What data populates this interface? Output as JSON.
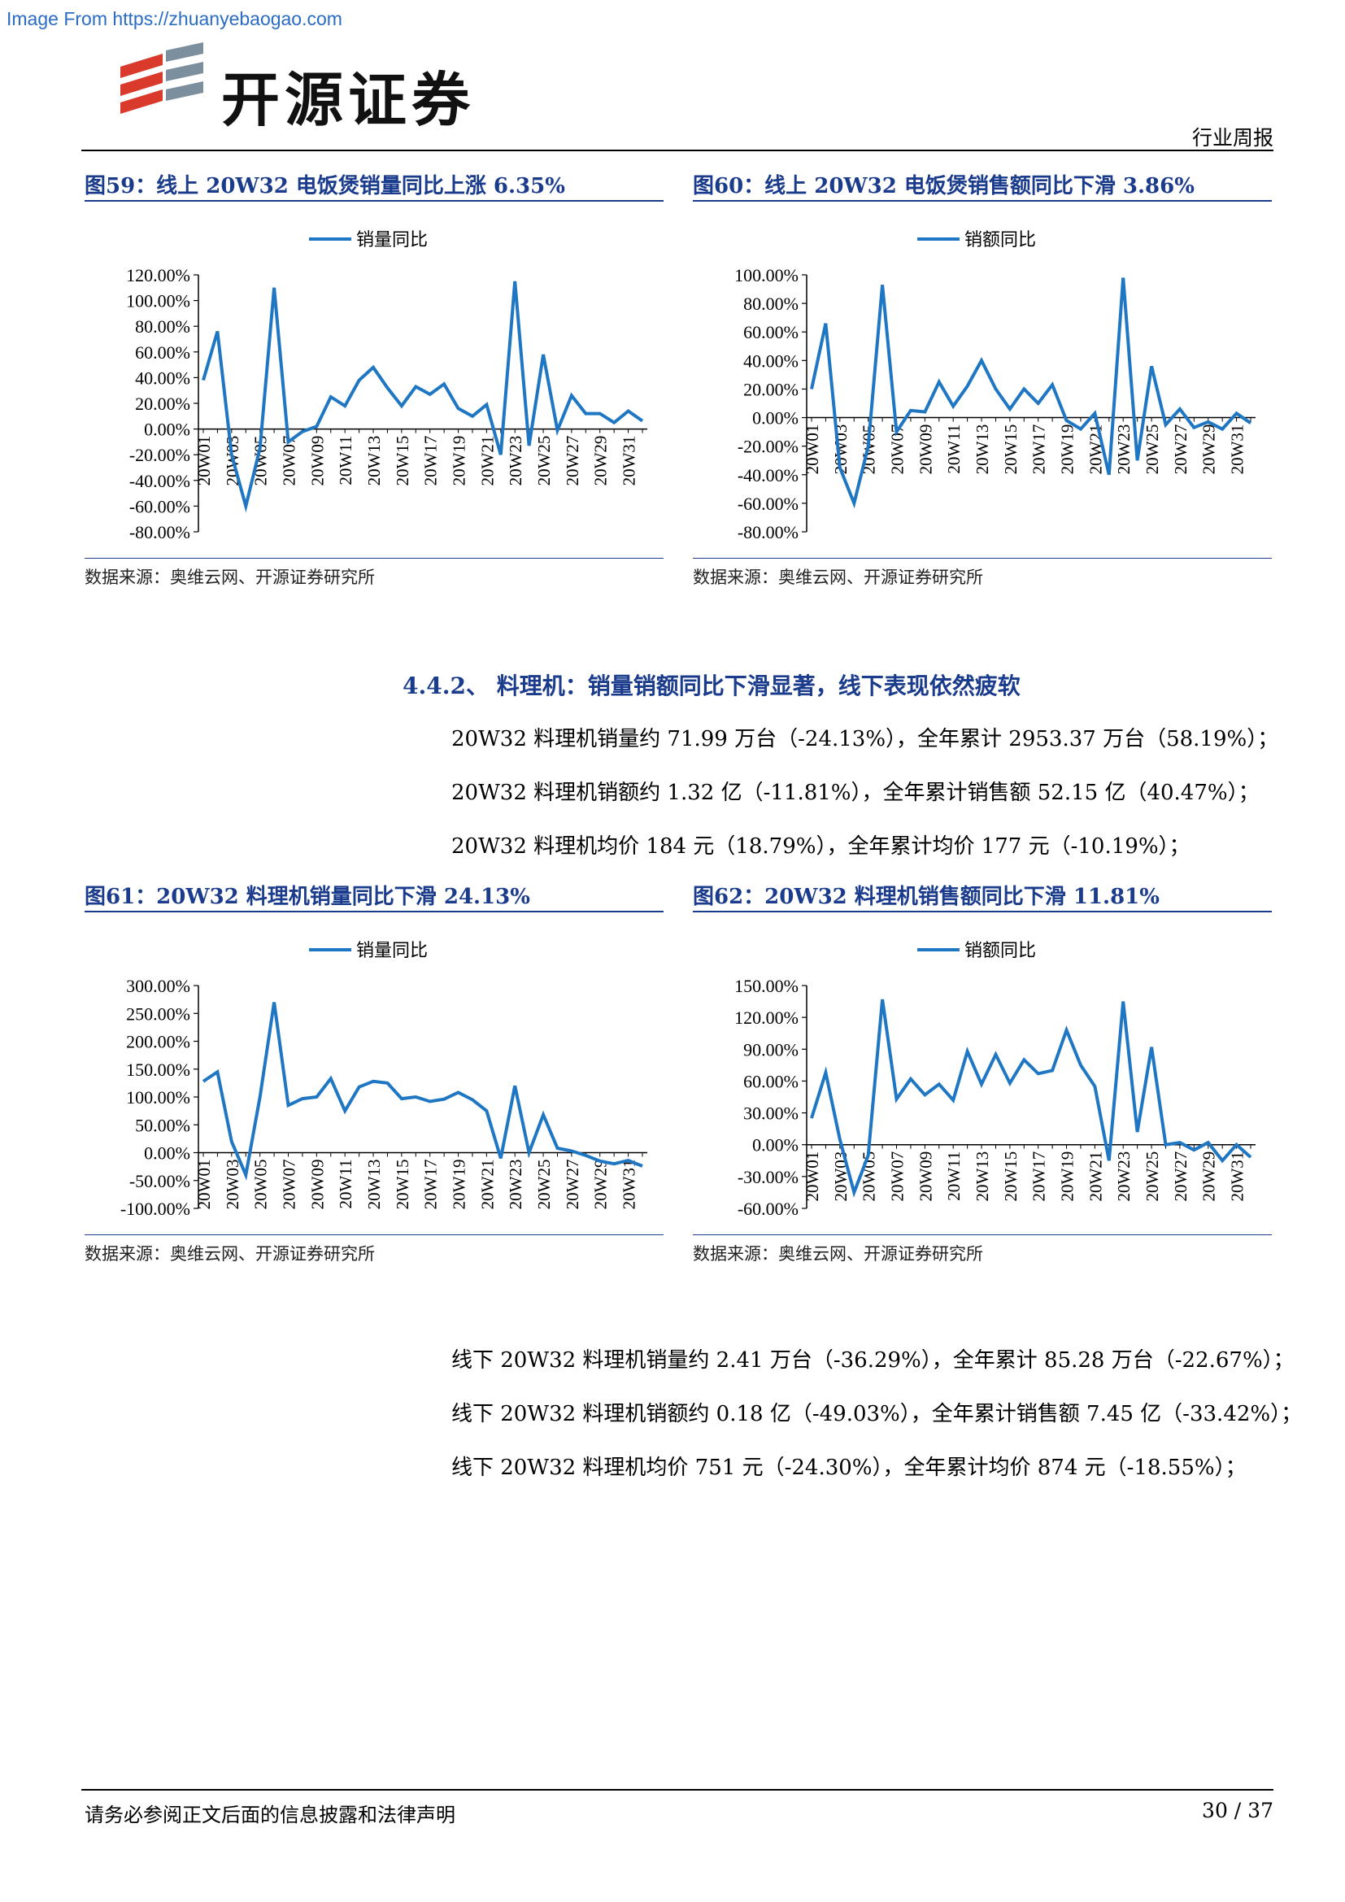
{
  "watermark": "Image From https://zhuanyebaogao.com",
  "header": {
    "brand": "开源证券",
    "report_type": "行业周报"
  },
  "figures": {
    "fig59": {
      "title": "图59：线上 20W32 电饭煲销量同比上涨 6.35%",
      "source": "数据来源：奥维云网、开源证券研究所"
    },
    "fig60": {
      "title": "图60：线上 20W32 电饭煲销售额同比下滑 3.86%",
      "source": "数据来源：奥维云网、开源证券研究所"
    },
    "fig61": {
      "title": "图61：20W32 料理机销量同比下滑 24.13%",
      "source": "数据来源：奥维云网、开源证券研究所"
    },
    "fig62": {
      "title": "图62：20W32 料理机销售额同比下滑 11.81%",
      "source": "数据来源：奥维云网、开源证券研究所"
    }
  },
  "section": {
    "title": "4.4.2、 料理机：销量销额同比下滑显著，线下表现依然疲软",
    "lines": [
      "20W32 料理机销量约 71.99 万台（-24.13%），全年累计 2953.37 万台（58.19%）；",
      "20W32 料理机销额约 1.32 亿（-11.81%），全年累计销售额 52.15 亿（40.47%）；",
      "20W32 料理机均价 184 元（18.79%），全年累计均价 177 元（-10.19%）；"
    ],
    "offline_lines": [
      "线下 20W32 料理机销量约 2.41 万台（-36.29%），全年累计 85.28 万台（-22.67%）；",
      "线下 20W32 料理机销额约 0.18 亿（-49.03%），全年累计销售额 7.45 亿（-33.42%）；",
      "线下 20W32 料理机均价 751 元（-24.30%），全年累计均价 874 元（-18.55%）；"
    ]
  },
  "footer": {
    "disclaimer": "请务必参阅正文后面的信息披露和法律声明",
    "page": "30 / 37"
  },
  "colors": {
    "line": "#1f77c4",
    "title": "#1b3c8c"
  },
  "chart_data": [
    {
      "id": "fig59",
      "type": "line",
      "x": [
        "20W01",
        "20W02",
        "20W03",
        "20W04",
        "20W05",
        "20W06",
        "20W07",
        "20W08",
        "20W09",
        "20W10",
        "20W11",
        "20W12",
        "20W13",
        "20W14",
        "20W15",
        "20W16",
        "20W17",
        "20W18",
        "20W19",
        "20W20",
        "20W21",
        "20W22",
        "20W23",
        "20W24",
        "20W25",
        "20W26",
        "20W27",
        "20W28",
        "20W29",
        "20W30",
        "20W31",
        "20W32"
      ],
      "x_tick_labels": [
        "20W01",
        "20W03",
        "20W05",
        "20W07",
        "20W09",
        "20W11",
        "20W13",
        "20W15",
        "20W17",
        "20W19",
        "20W21",
        "20W23",
        "20W25",
        "20W27",
        "20W29",
        "20W31"
      ],
      "series": [
        {
          "name": "销量同比",
          "values": [
            38,
            76,
            -20,
            -60,
            -15,
            110,
            -10,
            -2,
            2,
            25,
            18,
            38,
            48,
            32,
            18,
            33,
            27,
            35,
            16,
            10,
            19,
            -20,
            115,
            -13,
            58,
            -1,
            26,
            12,
            12,
            5,
            14,
            6.35
          ]
        }
      ],
      "ylim": [
        -80,
        120
      ],
      "y_ticks": [
        "120.00%",
        "100.00%",
        "80.00%",
        "60.00%",
        "40.00%",
        "20.00%",
        "0.00%",
        "-20.00%",
        "-40.00%",
        "-60.00%",
        "-80.00%"
      ],
      "legend": "top-center"
    },
    {
      "id": "fig60",
      "type": "line",
      "x": [
        "20W01",
        "20W02",
        "20W03",
        "20W04",
        "20W05",
        "20W06",
        "20W07",
        "20W08",
        "20W09",
        "20W10",
        "20W11",
        "20W12",
        "20W13",
        "20W14",
        "20W15",
        "20W16",
        "20W17",
        "20W18",
        "20W19",
        "20W20",
        "20W21",
        "20W22",
        "20W23",
        "20W24",
        "20W25",
        "20W26",
        "20W27",
        "20W28",
        "20W29",
        "20W30",
        "20W31",
        "20W32"
      ],
      "x_tick_labels": [
        "20W01",
        "20W03",
        "20W05",
        "20W07",
        "20W09",
        "20W11",
        "20W13",
        "20W15",
        "20W17",
        "20W19",
        "20W21",
        "20W23",
        "20W25",
        "20W27",
        "20W29",
        "20W31"
      ],
      "series": [
        {
          "name": "销额同比",
          "values": [
            20,
            66,
            -35,
            -60,
            -20,
            93,
            -10,
            5,
            4,
            25,
            8,
            22,
            40,
            20,
            6,
            20,
            10,
            23,
            -2,
            -8,
            3,
            -40,
            98,
            -30,
            36,
            -5,
            6,
            -7,
            -3,
            -8,
            3,
            -3.86
          ]
        }
      ],
      "ylim": [
        -80,
        100
      ],
      "y_ticks": [
        "100.00%",
        "80.00%",
        "60.00%",
        "40.00%",
        "20.00%",
        "0.00%",
        "-20.00%",
        "-40.00%",
        "-60.00%",
        "-80.00%"
      ],
      "legend": "top-center"
    },
    {
      "id": "fig61",
      "type": "line",
      "x": [
        "20W01",
        "20W02",
        "20W03",
        "20W04",
        "20W05",
        "20W06",
        "20W07",
        "20W08",
        "20W09",
        "20W10",
        "20W11",
        "20W12",
        "20W13",
        "20W14",
        "20W15",
        "20W16",
        "20W17",
        "20W18",
        "20W19",
        "20W20",
        "20W21",
        "20W22",
        "20W23",
        "20W24",
        "20W25",
        "20W26",
        "20W27",
        "20W28",
        "20W29",
        "20W30",
        "20W31",
        "20W32"
      ],
      "x_tick_labels": [
        "20W01",
        "20W03",
        "20W05",
        "20W07",
        "20W09",
        "20W11",
        "20W13",
        "20W15",
        "20W17",
        "20W19",
        "20W21",
        "20W23",
        "20W25",
        "20W27",
        "20W29",
        "20W31"
      ],
      "series": [
        {
          "name": "销量同比",
          "values": [
            128,
            145,
            20,
            -40,
            100,
            270,
            85,
            97,
            100,
            133,
            75,
            118,
            128,
            125,
            97,
            100,
            92,
            96,
            108,
            95,
            75,
            -10,
            120,
            0,
            68,
            8,
            3,
            -5,
            -15,
            -20,
            -14,
            -24.13
          ]
        }
      ],
      "ylim": [
        -100,
        300
      ],
      "y_ticks": [
        "300.00%",
        "250.00%",
        "200.00%",
        "150.00%",
        "100.00%",
        "50.00%",
        "0.00%",
        "-50.00%",
        "-100.00%"
      ],
      "legend": "top-center"
    },
    {
      "id": "fig62",
      "type": "line",
      "x": [
        "20W01",
        "20W02",
        "20W03",
        "20W04",
        "20W05",
        "20W06",
        "20W07",
        "20W08",
        "20W09",
        "20W10",
        "20W11",
        "20W12",
        "20W13",
        "20W14",
        "20W15",
        "20W16",
        "20W17",
        "20W18",
        "20W19",
        "20W20",
        "20W21",
        "20W22",
        "20W23",
        "20W24",
        "20W25",
        "20W26",
        "20W27",
        "20W28",
        "20W29",
        "20W30",
        "20W31",
        "20W32"
      ],
      "x_tick_labels": [
        "20W01",
        "20W03",
        "20W05",
        "20W07",
        "20W09",
        "20W11",
        "20W13",
        "20W15",
        "20W17",
        "20W19",
        "20W21",
        "20W23",
        "20W25",
        "20W27",
        "20W29",
        "20W31"
      ],
      "series": [
        {
          "name": "销额同比",
          "values": [
            25,
            68,
            5,
            -45,
            -10,
            137,
            43,
            62,
            47,
            57,
            42,
            88,
            57,
            85,
            58,
            80,
            67,
            70,
            108,
            75,
            55,
            -15,
            135,
            12,
            92,
            0,
            2,
            -5,
            2,
            -15,
            0,
            -11.81
          ]
        }
      ],
      "ylim": [
        -60,
        150
      ],
      "y_ticks": [
        "150.00%",
        "120.00%",
        "90.00%",
        "60.00%",
        "30.00%",
        "0.00%",
        "-30.00%",
        "-60.00%"
      ],
      "legend": "top-center"
    }
  ]
}
